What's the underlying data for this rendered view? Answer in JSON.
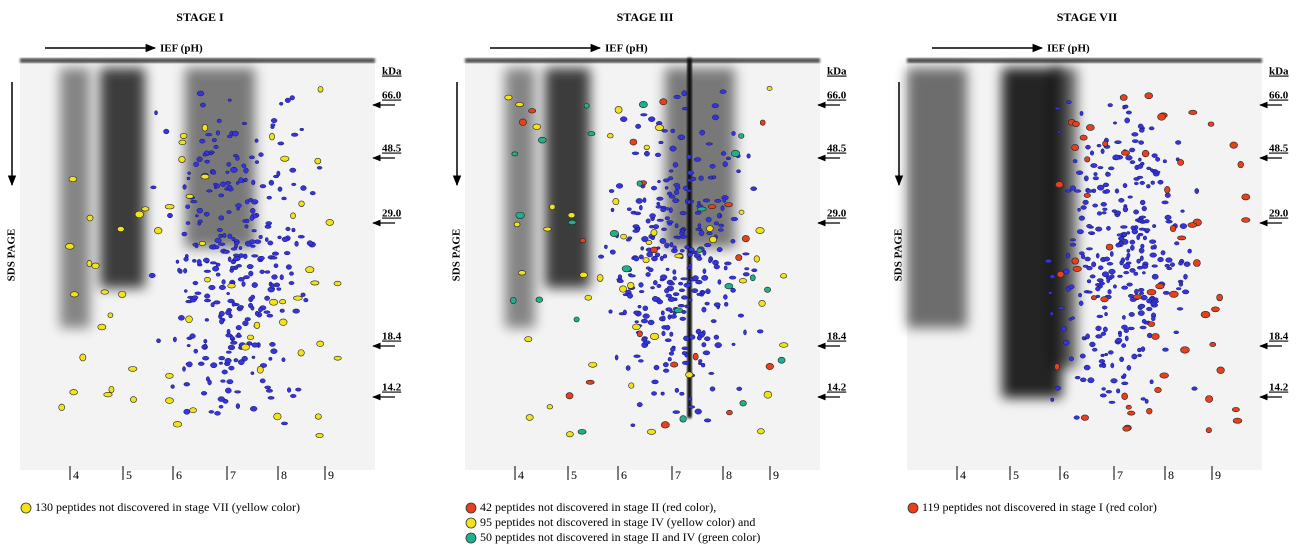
{
  "panels": [
    {
      "title": "STAGE I",
      "x_axis_label": "IEF (pH)",
      "y_axis_label": "SDS PAGE",
      "mw_unit": "kDa",
      "mw_markers": [
        "66.0",
        "48.5",
        "29.0",
        "18.4",
        "14.2"
      ],
      "ph_ticks": [
        "4",
        "5",
        "6",
        "7",
        "8",
        "9"
      ],
      "legend": [
        {
          "text": "130 peptides not discovered in stage VII (yellow color)",
          "color": "#f2e21b"
        }
      ]
    },
    {
      "title": "STAGE III",
      "x_axis_label": "IEF (pH)",
      "y_axis_label": "SDS PAGE",
      "mw_unit": "kDa",
      "mw_markers": [
        "66.0",
        "48.5",
        "29.0",
        "18.4",
        "14.2"
      ],
      "ph_ticks": [
        "4",
        "5",
        "6",
        "7",
        "8",
        "9"
      ],
      "legend": [
        {
          "text": "42 peptides not discovered in stage II (red color),",
          "color": "#e8401c"
        },
        {
          "text": "95 peptides not discovered in stage IV (yellow color) and",
          "color": "#f2e21b"
        },
        {
          "text": "50 peptides not discovered in stage II and IV (green color)",
          "color": "#1fb08c"
        }
      ]
    },
    {
      "title": "STAGE VII",
      "x_axis_label": "IEF (pH)",
      "y_axis_label": "SDS PAGE",
      "mw_unit": "kDa",
      "mw_markers": [
        "66.0",
        "48.5",
        "29.0",
        "18.4",
        "14.2"
      ],
      "ph_ticks": [
        "4",
        "5",
        "6",
        "7",
        "8",
        "9"
      ],
      "legend": [
        {
          "text": "119 peptides not discovered in stage I (red color)",
          "color": "#e8401c"
        }
      ]
    }
  ]
}
